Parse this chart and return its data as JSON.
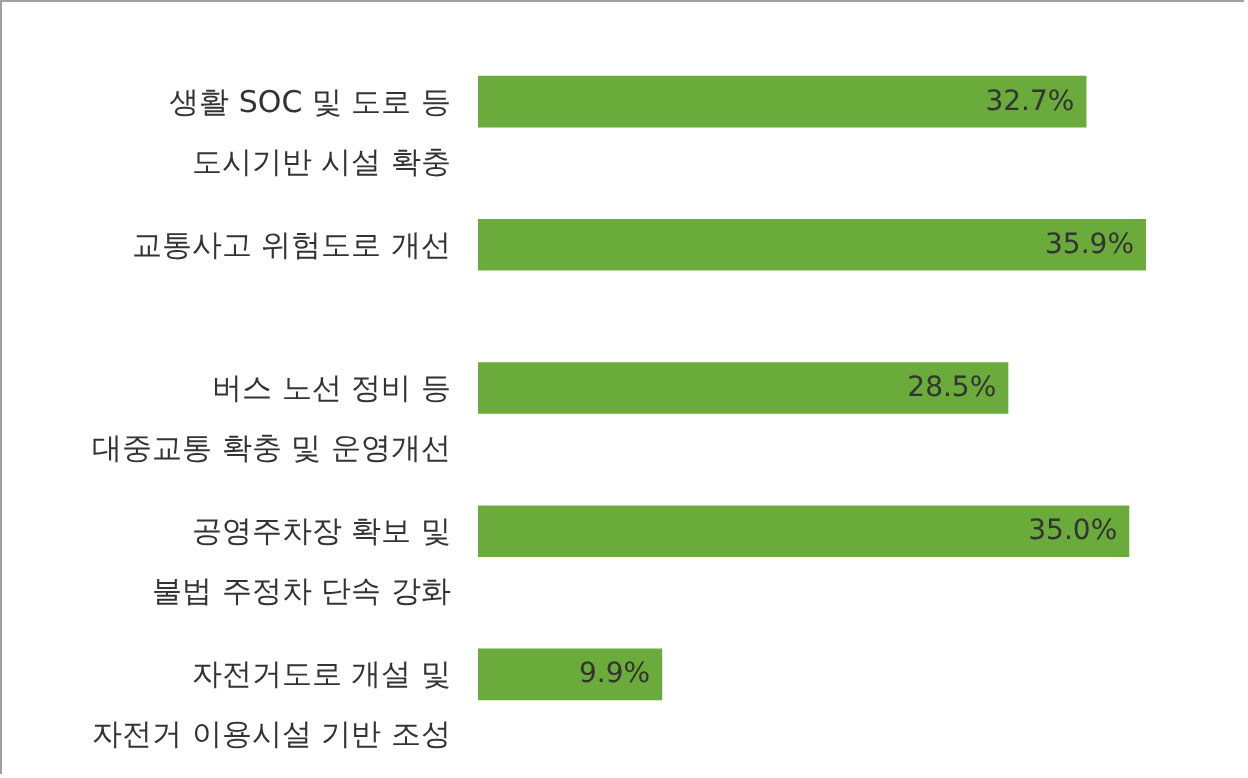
{
  "chart_data": {
    "type": "bar",
    "orientation": "horizontal",
    "categories": [
      "생활 SOC 및 도로 등\n도시기반 시설 확충",
      "교통사고 위험도로 개선",
      "버스 노선 정비 등\n대중교통 확충 및 운영개선",
      "공영주차장 확보 및\n불법 주정차 단속 강화",
      "자전거도로 개설 및\n자전거 이용시설 기반 조성"
    ],
    "values": [
      32.7,
      35.9,
      28.5,
      35.0,
      9.9
    ],
    "value_labels": [
      "32.7%",
      "35.9%",
      "28.5%",
      "35.0%",
      "9.9%"
    ],
    "color": "#6aab3c"
  }
}
